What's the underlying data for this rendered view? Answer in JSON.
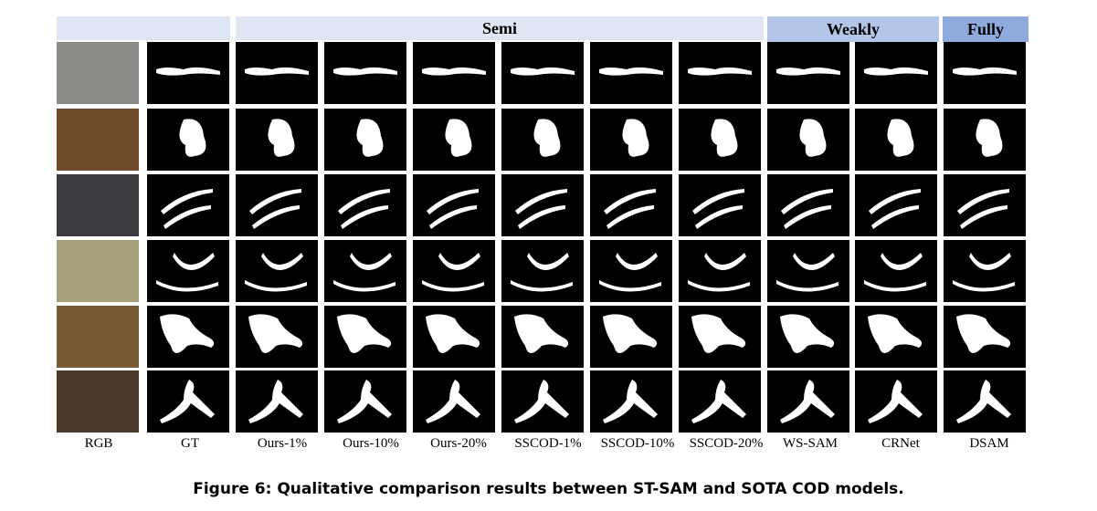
{
  "header": {
    "semi_label": "Semi",
    "weakly_label": "Weakly",
    "fully_label": "Fully",
    "colors": {
      "light_band": "#dfe6f3",
      "weakly_band": "#b4c6e7",
      "fully_band": "#8faadc"
    }
  },
  "columns": [
    "RGB",
    "GT",
    "Ours-1%",
    "Ours-10%",
    "Ours-20%",
    "SSCOD-1%",
    "SSCOD-10%",
    "SSCOD-20%",
    "WS-SAM",
    "CRNet",
    "DSAM"
  ],
  "rows": 6,
  "caption": "Figure 6: Qualitative comparison results between ST-SAM and SOTA COD models."
}
